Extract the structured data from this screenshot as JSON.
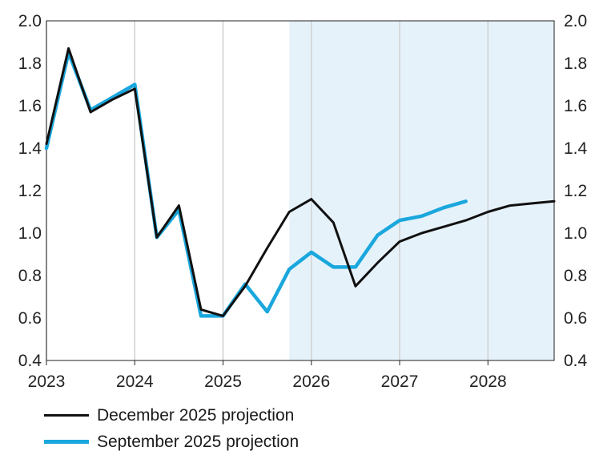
{
  "chart_data": {
    "type": "line",
    "x_ticks": [
      "2023",
      "2024",
      "2025",
      "2026",
      "2027",
      "2028"
    ],
    "xlim": [
      2023.0,
      2028.75
    ],
    "ylim": [
      0.4,
      2.0
    ],
    "y_ticks": [
      "0.4",
      "0.6",
      "0.8",
      "1.0",
      "1.2",
      "1.4",
      "1.6",
      "1.8",
      "2.0"
    ],
    "y_tick_values": [
      0.4,
      0.6,
      0.8,
      1.0,
      1.2,
      1.4,
      1.6,
      1.8,
      2.0
    ],
    "dual_y_axis": true,
    "grid": "vertical at year ticks",
    "shaded_region": {
      "from": 2025.75,
      "to": 2028.75,
      "color": "#e6f2fa"
    },
    "series": [
      {
        "name": "December 2025 projection",
        "color": "#111111",
        "x": [
          2023.0,
          2023.25,
          2023.5,
          2023.75,
          2024.0,
          2024.25,
          2024.5,
          2024.75,
          2025.0,
          2025.25,
          2025.5,
          2025.75,
          2026.0,
          2026.25,
          2026.5,
          2026.75,
          2027.0,
          2027.25,
          2027.5,
          2027.75,
          2028.0,
          2028.25,
          2028.5,
          2028.75
        ],
        "values": [
          1.42,
          1.87,
          1.57,
          1.63,
          1.68,
          0.98,
          1.13,
          0.64,
          0.61,
          0.75,
          0.93,
          1.1,
          1.16,
          1.05,
          0.75,
          0.86,
          0.96,
          1.0,
          1.03,
          1.06,
          1.1,
          1.13,
          1.14,
          1.15
        ]
      },
      {
        "name": "September 2025 projection",
        "color": "#1aa7dd",
        "x": [
          2023.0,
          2023.25,
          2023.5,
          2023.75,
          2024.0,
          2024.25,
          2024.5,
          2024.75,
          2025.0,
          2025.25,
          2025.5,
          2025.75,
          2026.0,
          2026.25,
          2026.5,
          2026.75,
          2027.0,
          2027.25,
          2027.5,
          2027.75
        ],
        "values": [
          1.4,
          1.85,
          1.58,
          1.64,
          1.7,
          0.98,
          1.11,
          0.61,
          0.61,
          0.76,
          0.63,
          0.83,
          0.91,
          0.84,
          0.84,
          0.99,
          1.06,
          1.08,
          1.12,
          1.15
        ]
      }
    ]
  },
  "legend": {
    "items": [
      {
        "label": "December 2025 projection",
        "color": "#111111"
      },
      {
        "label": "September 2025 projection",
        "color": "#1aa7dd"
      }
    ]
  }
}
